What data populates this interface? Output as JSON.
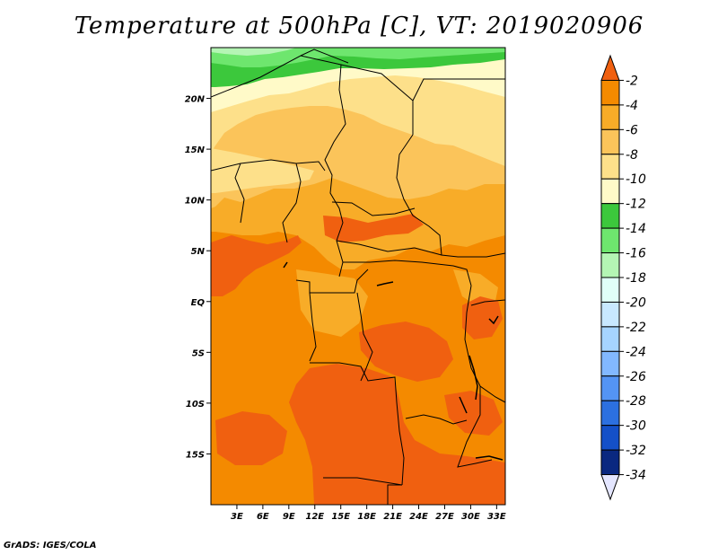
{
  "title": "Temperature at 500hPa [C], VT: 2019020906",
  "credit": "GrADS: IGES/COLA",
  "map": {
    "lon_range": [
      0,
      34
    ],
    "lat_range": [
      -20,
      25
    ],
    "lat_ticks": [
      {
        "value": 20,
        "label": "20N"
      },
      {
        "value": 15,
        "label": "15N"
      },
      {
        "value": 10,
        "label": "10N"
      },
      {
        "value": 5,
        "label": "5N"
      },
      {
        "value": 0,
        "label": "EQ"
      },
      {
        "value": -5,
        "label": "5S"
      },
      {
        "value": -10,
        "label": "10S"
      },
      {
        "value": -15,
        "label": "15S"
      }
    ],
    "lon_ticks": [
      {
        "value": 3,
        "label": "3E"
      },
      {
        "value": 6,
        "label": "6E"
      },
      {
        "value": 9,
        "label": "9E"
      },
      {
        "value": 12,
        "label": "12E"
      },
      {
        "value": 15,
        "label": "15E"
      },
      {
        "value": 18,
        "label": "18E"
      },
      {
        "value": 21,
        "label": "21E"
      },
      {
        "value": 24,
        "label": "24E"
      },
      {
        "value": 27,
        "label": "27E"
      },
      {
        "value": 30,
        "label": "30E"
      },
      {
        "value": 33,
        "label": "33E"
      }
    ]
  },
  "colorbar": {
    "levels": [
      "-2",
      "-4",
      "-6",
      "-8",
      "-10",
      "-12",
      "-14",
      "-16",
      "-18",
      "-20",
      "-22",
      "-24",
      "-26",
      "-28",
      "-30",
      "-32",
      "-34"
    ],
    "colors": [
      "#f06010",
      "#f48a00",
      "#f8ac28",
      "#fbc45a",
      "#fde08a",
      "#fffac8",
      "#3cc83c",
      "#6ee66e",
      "#b4f5b4",
      "#e0fff8",
      "#c8e8ff",
      "#a6d4ff",
      "#82b8ff",
      "#5494f4",
      "#2c70e0",
      "#1450c8",
      "#0a2880",
      "#e4e6ff"
    ]
  }
}
